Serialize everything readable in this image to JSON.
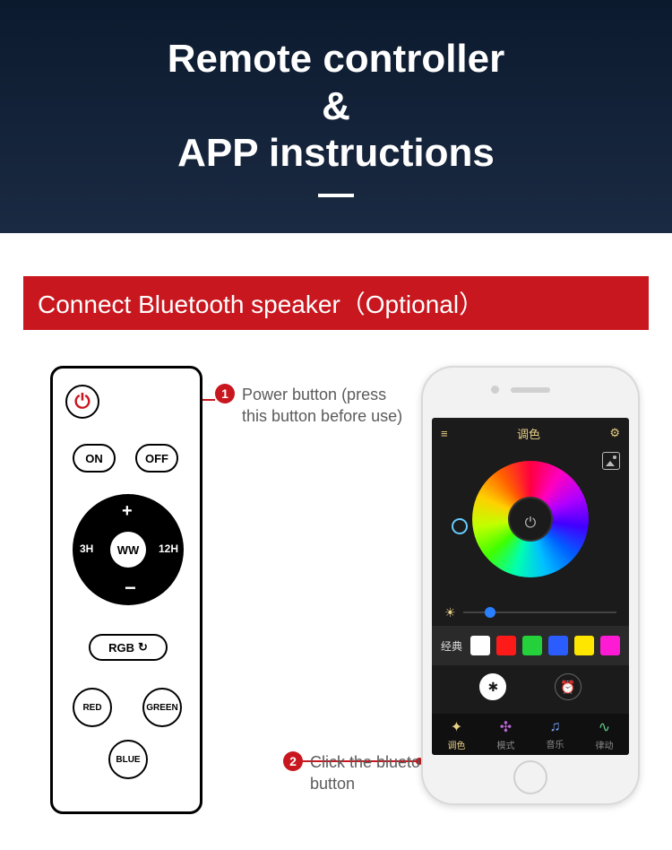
{
  "hero": {
    "line1": "Remote controller",
    "amp": "&",
    "line2": "APP instructions",
    "bg_gradient_top": "#0c1a2e",
    "bg_gradient_bottom": "#1a2a42",
    "text_color": "#ffffff"
  },
  "banner": {
    "text": "Connect Bluetooth speaker（Optional）",
    "bg": "#c8171e",
    "color": "#ffffff"
  },
  "remote": {
    "power_glyph": "⏻",
    "on": "ON",
    "off": "OFF",
    "dpad_center": "WW",
    "dpad_plus": "+",
    "dpad_minus": "−",
    "dpad_left": "3H",
    "dpad_right": "12H",
    "rgb_label": "RGB",
    "rgb_cycle_glyph": "↻",
    "red": "RED",
    "green": "GREEN",
    "blue": "BLUE"
  },
  "callouts": {
    "c1_num": "1",
    "c1_text": "Power button (press this button before use)",
    "c2_num": "2",
    "c2_text": "Click the bluetooth button",
    "badge_bg": "#c8171e",
    "text_color": "#5b5b5b"
  },
  "phone": {
    "topbar_title": "调色",
    "menu_glyph": "≡",
    "gear_glyph": "⚙",
    "power_glyph": "⏻",
    "slider_sun": "☀",
    "preset_label": "经典",
    "swatches": [
      "#ffffff",
      "#ff1a1a",
      "#24d13a",
      "#2a5cff",
      "#ffe600",
      "#ff1ad4"
    ],
    "bt_glyph": "⌖",
    "bluetooth_glyph": "✱",
    "clock_glyph": "⏰",
    "tabs": [
      {
        "icon": "✦",
        "label": "调色",
        "active": true,
        "color": "#e8cf86"
      },
      {
        "icon": "✣",
        "label": "模式",
        "active": false,
        "color": "#b865d4"
      },
      {
        "icon": "♫",
        "label": "音乐",
        "active": false,
        "color": "#7aa7ff"
      },
      {
        "icon": "∿",
        "label": "律动",
        "active": false,
        "color": "#5fd08a"
      }
    ],
    "screen_bg": "#1b1b1b",
    "accent": "#e8cf86"
  }
}
